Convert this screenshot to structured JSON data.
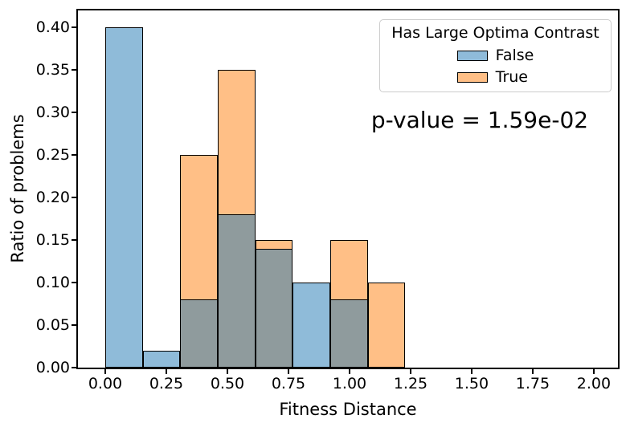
{
  "chart_data": {
    "type": "histogram",
    "title": "",
    "xlabel": "Fitness Distance",
    "ylabel": "Ratio of problems",
    "annotation": "p-value = 1.59e-02",
    "grid": false,
    "bin_edges": [
      0.0,
      0.1535,
      0.307,
      0.4605,
      0.614,
      0.7675,
      0.921,
      1.0745,
      1.228
    ],
    "series": [
      {
        "name": "True",
        "color": "#ff7f0e",
        "alpha": 0.5,
        "values": [
          0.0,
          0.0,
          0.25,
          0.35,
          0.15,
          0.0,
          0.15,
          0.1
        ]
      },
      {
        "name": "False",
        "color": "#1f77b4",
        "alpha": 0.5,
        "values": [
          0.4,
          0.02,
          0.08,
          0.18,
          0.14,
          0.1,
          0.08,
          0.0
        ]
      }
    ],
    "edge_color": "#000000",
    "overlap_color_rendered": "#8f9b9d",
    "xlim": [
      -0.112,
      2.099
    ],
    "ylim": [
      0,
      0.42
    ],
    "x_tick_values": [
      0.0,
      0.25,
      0.5,
      0.75,
      1.0,
      1.25,
      1.5,
      1.75,
      2.0
    ],
    "x_tick_labels": [
      "0.00",
      "0.25",
      "0.50",
      "0.75",
      "1.00",
      "1.25",
      "1.50",
      "1.75",
      "2.00"
    ],
    "y_tick_values": [
      0.0,
      0.05,
      0.1,
      0.15,
      0.2,
      0.25,
      0.3,
      0.35,
      0.4
    ],
    "y_tick_labels": [
      "0.00",
      "0.05",
      "0.10",
      "0.15",
      "0.20",
      "0.25",
      "0.30",
      "0.35",
      "0.40"
    ],
    "legend": {
      "title": "Has Large Optima Contrast",
      "position": "upper right",
      "entries": [
        {
          "label": "False",
          "color": "#1f77b4",
          "alpha": 0.5
        },
        {
          "label": "True",
          "color": "#ff7f0e",
          "alpha": 0.5
        }
      ]
    }
  }
}
